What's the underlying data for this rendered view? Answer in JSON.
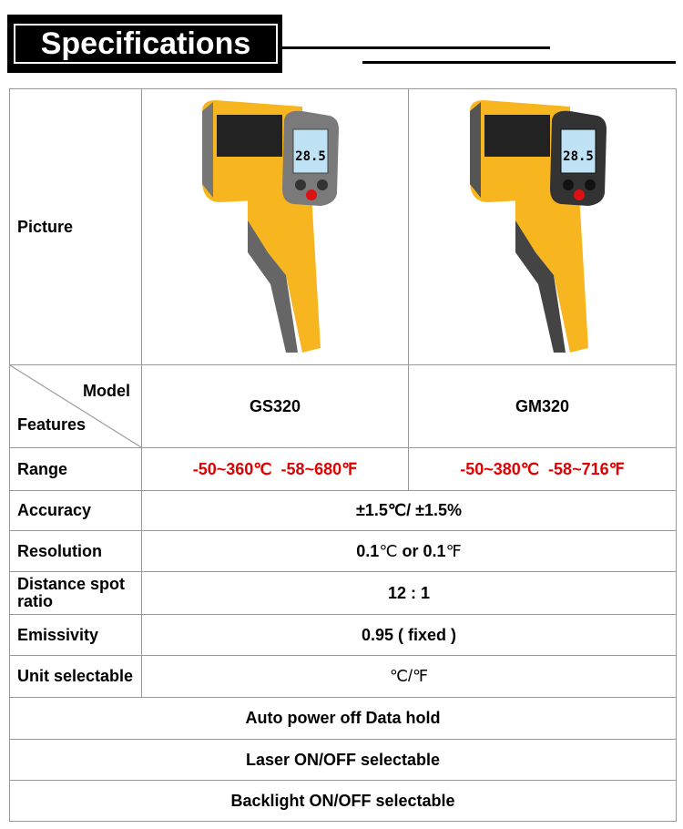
{
  "title": "Specifications",
  "rows": {
    "picture": "Picture",
    "model_header": "Model",
    "features_header": "Features",
    "models": [
      "GS320",
      "GM320"
    ],
    "display_value": "28.5",
    "range_label": "Range",
    "range": [
      {
        "c": "-50~360℃",
        "f": "-58~680℉"
      },
      {
        "c": "-50~380℃",
        "f": "-58~716℉"
      }
    ],
    "accuracy_label": "Accuracy",
    "accuracy": "±1.5℃/ ±1.5%",
    "resolution_label": "Resolution",
    "resolution_a": "0.1",
    "resolution_c": "℃",
    "resolution_or": " or 0.1",
    "resolution_f": "℉",
    "distance_label": "Distance spot ratio",
    "distance": "12 : 1",
    "emissivity_label": "Emissivity",
    "emissivity": "0.95 ( fixed )",
    "unit_label": "Unit selectable",
    "unit": "℃/℉",
    "feature1": "Auto power off Data hold",
    "feature2": "Laser ON/OFF selectable",
    "feature3": "Backlight ON/OFF selectable"
  },
  "colors": {
    "range": "#e00000",
    "body": "#f7b51f",
    "head_gs": "#7a7a7a",
    "head_gm": "#333333"
  }
}
